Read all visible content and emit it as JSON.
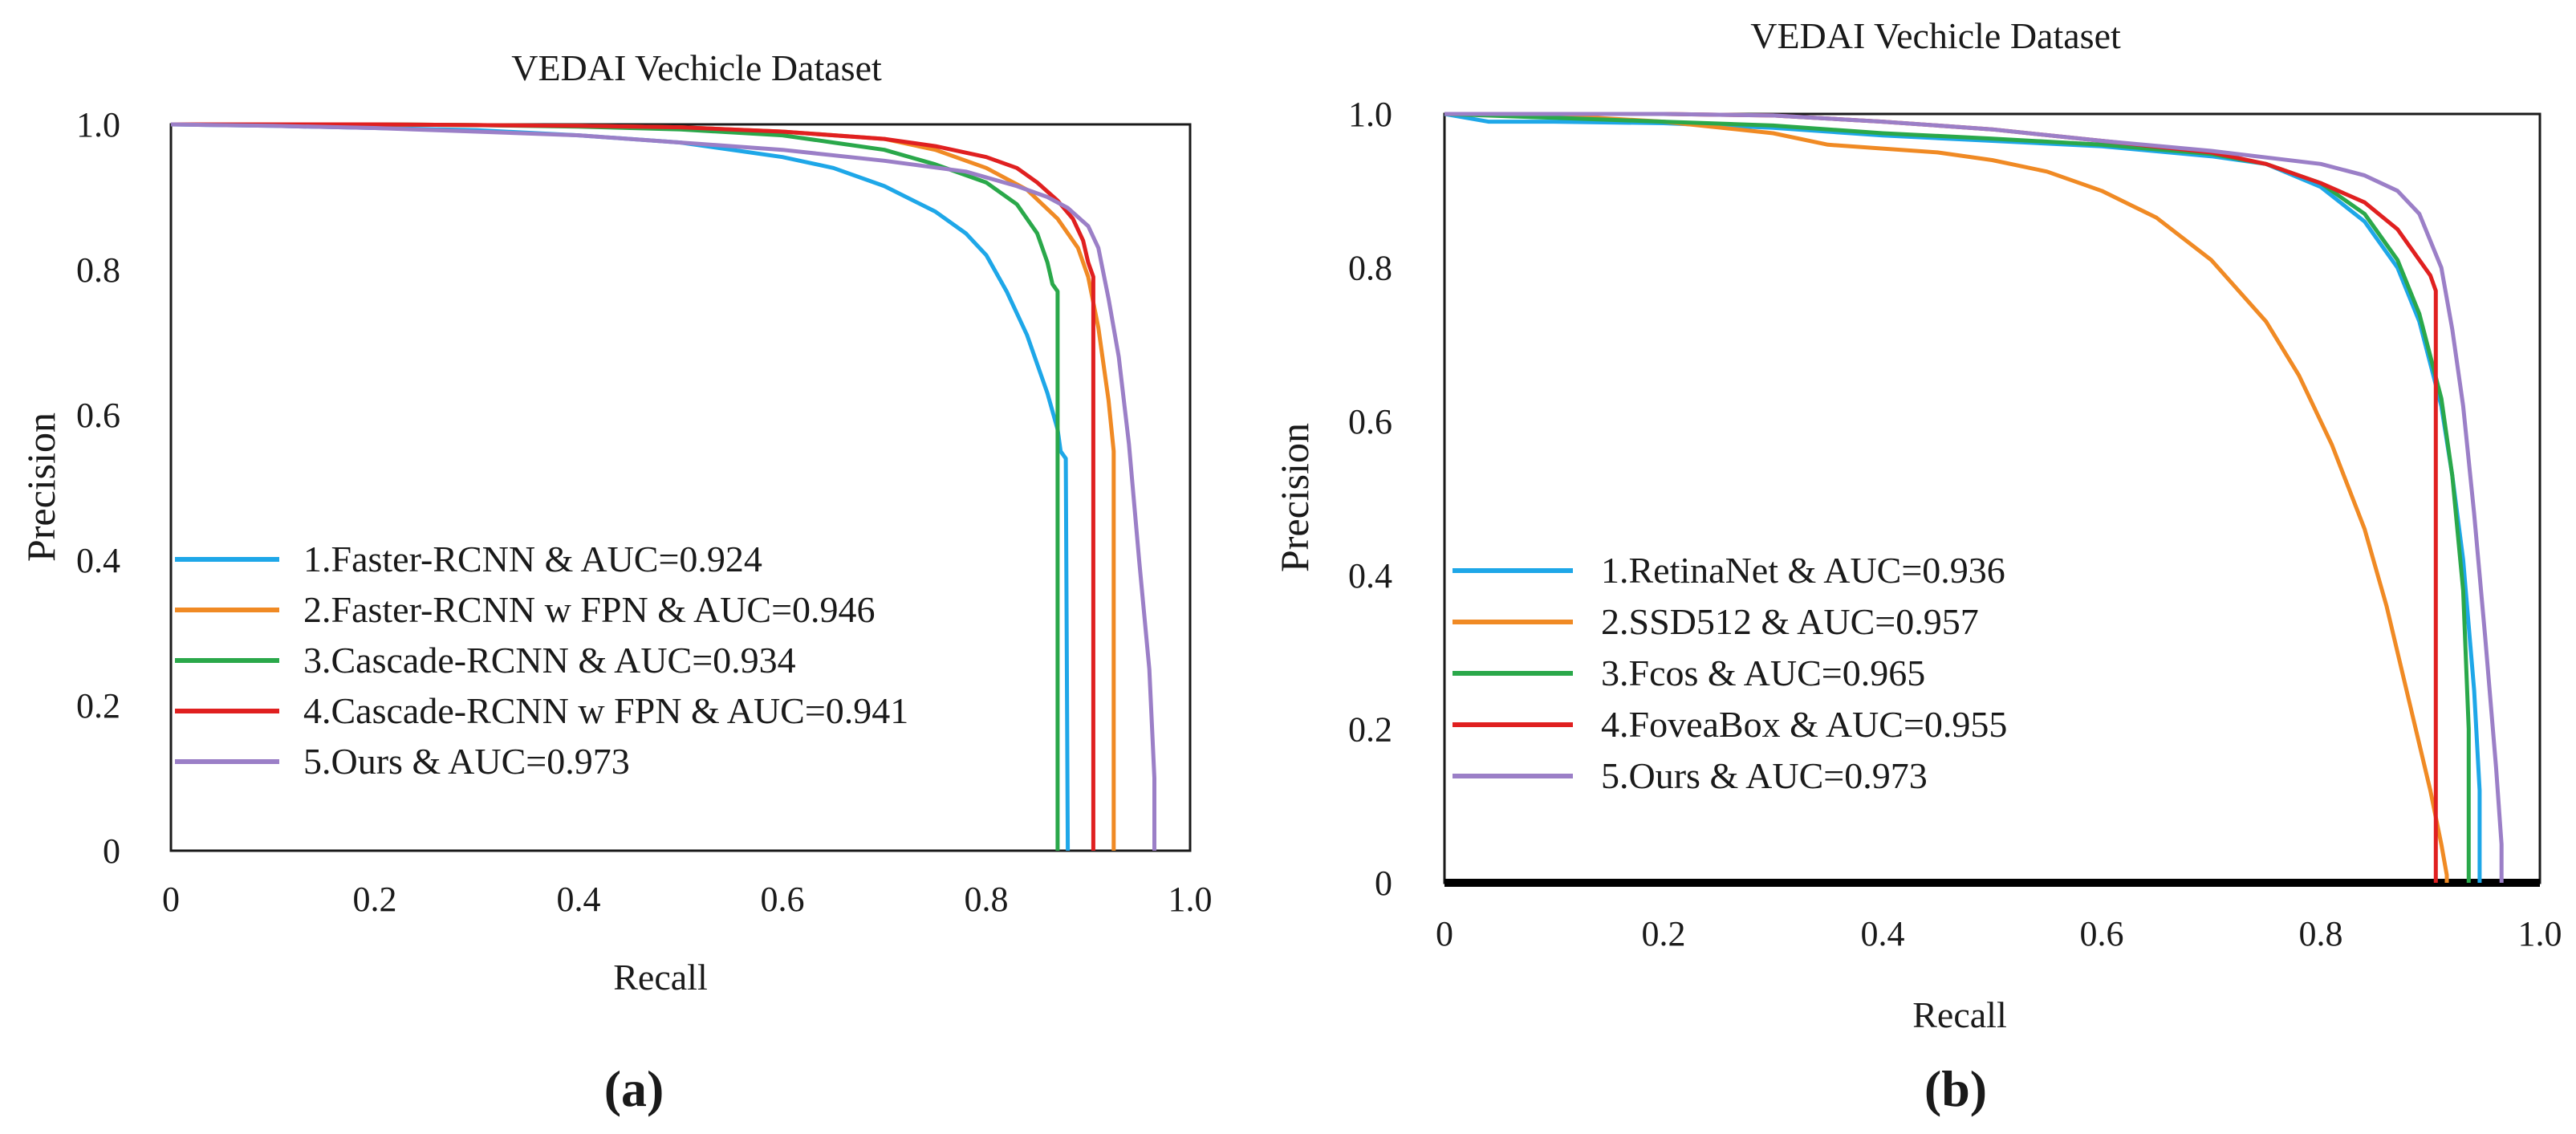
{
  "chart_data": [
    {
      "type": "line",
      "title": "VEDAI Vechicle Dataset",
      "xlabel": "Recall",
      "ylabel": "Precision",
      "panel_label": "(a)",
      "xlim": [
        0,
        1.0
      ],
      "ylim": [
        0,
        1.0
      ],
      "x_ticks": [
        "0",
        "0.2",
        "0.4",
        "0.6",
        "0.8",
        "1.0"
      ],
      "y_ticks": [
        "0",
        "0.2",
        "0.4",
        "0.6",
        "0.8",
        "1.0"
      ],
      "grid": false,
      "legend_position": "bottom-left",
      "series": [
        {
          "name": "1.Faster-RCNN & AUC=0.924",
          "color": "#1ea7e8",
          "x": [
            0.0,
            0.1,
            0.2,
            0.3,
            0.4,
            0.5,
            0.6,
            0.65,
            0.7,
            0.75,
            0.78,
            0.8,
            0.82,
            0.84,
            0.86,
            0.87,
            0.873,
            0.878,
            0.88
          ],
          "y": [
            1.0,
            0.998,
            0.995,
            0.992,
            0.985,
            0.975,
            0.955,
            0.94,
            0.915,
            0.88,
            0.85,
            0.82,
            0.77,
            0.71,
            0.63,
            0.58,
            0.55,
            0.54,
            0.0
          ]
        },
        {
          "name": "2.Faster-RCNN w FPN & AUC=0.946",
          "color": "#f08a24",
          "x": [
            0.0,
            0.1,
            0.2,
            0.3,
            0.4,
            0.5,
            0.6,
            0.7,
            0.75,
            0.8,
            0.84,
            0.87,
            0.89,
            0.9,
            0.91,
            0.92,
            0.925,
            0.925
          ],
          "y": [
            1.0,
            1.0,
            1.0,
            0.999,
            0.998,
            0.996,
            0.99,
            0.98,
            0.965,
            0.94,
            0.91,
            0.87,
            0.83,
            0.79,
            0.72,
            0.62,
            0.55,
            0.0
          ]
        },
        {
          "name": "3.Cascade-RCNN & AUC=0.934",
          "color": "#2aa84a",
          "x": [
            0.0,
            0.1,
            0.2,
            0.3,
            0.4,
            0.5,
            0.6,
            0.65,
            0.7,
            0.75,
            0.8,
            0.83,
            0.85,
            0.86,
            0.865,
            0.87,
            0.87
          ],
          "y": [
            1.0,
            1.0,
            1.0,
            0.999,
            0.997,
            0.993,
            0.985,
            0.975,
            0.965,
            0.945,
            0.92,
            0.89,
            0.85,
            0.81,
            0.78,
            0.77,
            0.0
          ]
        },
        {
          "name": "4.Cascade-RCNN w FPN & AUC=0.941",
          "color": "#e02020",
          "x": [
            0.0,
            0.1,
            0.2,
            0.3,
            0.4,
            0.5,
            0.6,
            0.7,
            0.75,
            0.8,
            0.83,
            0.85,
            0.87,
            0.885,
            0.895,
            0.9,
            0.905,
            0.905
          ],
          "y": [
            1.0,
            1.0,
            1.0,
            0.999,
            0.998,
            0.996,
            0.99,
            0.98,
            0.97,
            0.955,
            0.94,
            0.92,
            0.895,
            0.87,
            0.84,
            0.81,
            0.79,
            0.0
          ]
        },
        {
          "name": "5.Ours & AUC=0.973",
          "color": "#9b7fc7",
          "x": [
            0.0,
            0.1,
            0.2,
            0.3,
            0.4,
            0.5,
            0.6,
            0.7,
            0.78,
            0.83,
            0.86,
            0.88,
            0.9,
            0.91,
            0.92,
            0.93,
            0.94,
            0.95,
            0.96,
            0.965,
            0.965
          ],
          "y": [
            1.0,
            0.998,
            0.995,
            0.99,
            0.985,
            0.975,
            0.965,
            0.95,
            0.935,
            0.915,
            0.9,
            0.885,
            0.86,
            0.83,
            0.76,
            0.68,
            0.56,
            0.4,
            0.25,
            0.1,
            0.0
          ]
        }
      ]
    },
    {
      "type": "line",
      "title": "VEDAI Vechicle Dataset",
      "xlabel": "Recall",
      "ylabel": "Precision",
      "panel_label": "(b)",
      "xlim": [
        0,
        1.0
      ],
      "ylim": [
        0,
        1.0
      ],
      "x_ticks": [
        "0",
        "0.2",
        "0.4",
        "0.6",
        "0.8",
        "1.0"
      ],
      "y_ticks": [
        "0",
        "0.2",
        "0.4",
        "0.6",
        "0.8",
        "1.0"
      ],
      "grid": false,
      "legend_position": "bottom-left",
      "series": [
        {
          "name": "1.RetinaNet & AUC=0.936",
          "color": "#1ea7e8",
          "x": [
            0.0,
            0.04,
            0.1,
            0.2,
            0.3,
            0.4,
            0.5,
            0.6,
            0.7,
            0.75,
            0.8,
            0.84,
            0.87,
            0.89,
            0.91,
            0.92,
            0.93,
            0.94,
            0.945,
            0.945
          ],
          "y": [
            1.0,
            0.99,
            0.99,
            0.988,
            0.982,
            0.972,
            0.965,
            0.958,
            0.945,
            0.935,
            0.905,
            0.86,
            0.8,
            0.73,
            0.62,
            0.53,
            0.42,
            0.25,
            0.12,
            0.0
          ]
        },
        {
          "name": "2.SSD512 & AUC=0.957",
          "color": "#f08a24",
          "x": [
            0.0,
            0.1,
            0.2,
            0.3,
            0.35,
            0.4,
            0.45,
            0.5,
            0.55,
            0.6,
            0.65,
            0.7,
            0.75,
            0.78,
            0.81,
            0.84,
            0.86,
            0.88,
            0.9,
            0.91,
            0.915,
            0.915
          ],
          "y": [
            1.0,
            0.998,
            0.99,
            0.975,
            0.96,
            0.955,
            0.95,
            0.94,
            0.925,
            0.9,
            0.865,
            0.81,
            0.73,
            0.66,
            0.57,
            0.46,
            0.36,
            0.24,
            0.12,
            0.05,
            0.01,
            0.0
          ]
        },
        {
          "name": "3.Fcos & AUC=0.965",
          "color": "#2aa84a",
          "x": [
            0.0,
            0.1,
            0.2,
            0.3,
            0.4,
            0.5,
            0.6,
            0.7,
            0.75,
            0.8,
            0.84,
            0.87,
            0.89,
            0.91,
            0.92,
            0.93,
            0.935,
            0.935
          ],
          "y": [
            1.0,
            0.995,
            0.99,
            0.985,
            0.975,
            0.968,
            0.96,
            0.948,
            0.935,
            0.91,
            0.87,
            0.81,
            0.74,
            0.63,
            0.53,
            0.38,
            0.2,
            0.0
          ]
        },
        {
          "name": "4.FoveaBox & AUC=0.955",
          "color": "#e02020",
          "x": [
            0.0,
            0.1,
            0.2,
            0.3,
            0.4,
            0.5,
            0.6,
            0.7,
            0.75,
            0.8,
            0.84,
            0.87,
            0.89,
            0.9,
            0.905,
            0.905
          ],
          "y": [
            1.0,
            1.0,
            1.0,
            0.998,
            0.99,
            0.98,
            0.965,
            0.95,
            0.935,
            0.91,
            0.885,
            0.85,
            0.81,
            0.79,
            0.77,
            0.0
          ]
        },
        {
          "name": "5.Ours & AUC=0.973",
          "color": "#9b7fc7",
          "x": [
            0.0,
            0.1,
            0.2,
            0.3,
            0.4,
            0.5,
            0.6,
            0.7,
            0.8,
            0.84,
            0.87,
            0.89,
            0.91,
            0.92,
            0.93,
            0.94,
            0.95,
            0.96,
            0.965,
            0.965
          ],
          "y": [
            1.0,
            1.0,
            1.0,
            0.998,
            0.99,
            0.98,
            0.965,
            0.952,
            0.935,
            0.92,
            0.9,
            0.87,
            0.8,
            0.72,
            0.62,
            0.48,
            0.32,
            0.15,
            0.05,
            0.0
          ]
        }
      ]
    }
  ]
}
